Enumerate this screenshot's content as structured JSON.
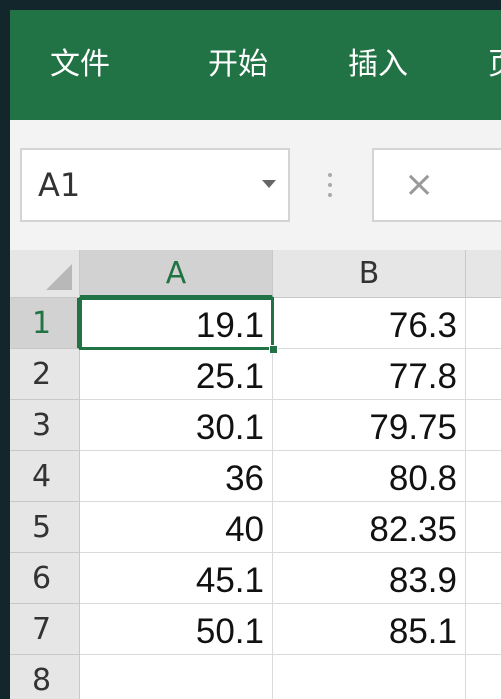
{
  "ribbon": {
    "tabs": [
      "文件",
      "开始",
      "插入",
      "页"
    ]
  },
  "name_box": "A1",
  "formula_cancel": "×",
  "columns": [
    "A",
    "B"
  ],
  "rows": [
    {
      "label": "1",
      "cells": [
        19.1,
        76.3
      ]
    },
    {
      "label": "2",
      "cells": [
        25.1,
        77.8
      ]
    },
    {
      "label": "3",
      "cells": [
        30.1,
        79.75
      ]
    },
    {
      "label": "4",
      "cells": [
        36,
        80.8
      ]
    },
    {
      "label": "5",
      "cells": [
        40,
        82.35
      ]
    },
    {
      "label": "6",
      "cells": [
        45.1,
        83.9
      ]
    },
    {
      "label": "7",
      "cells": [
        50.1,
        85.1
      ]
    },
    {
      "label": "8"
    }
  ]
}
